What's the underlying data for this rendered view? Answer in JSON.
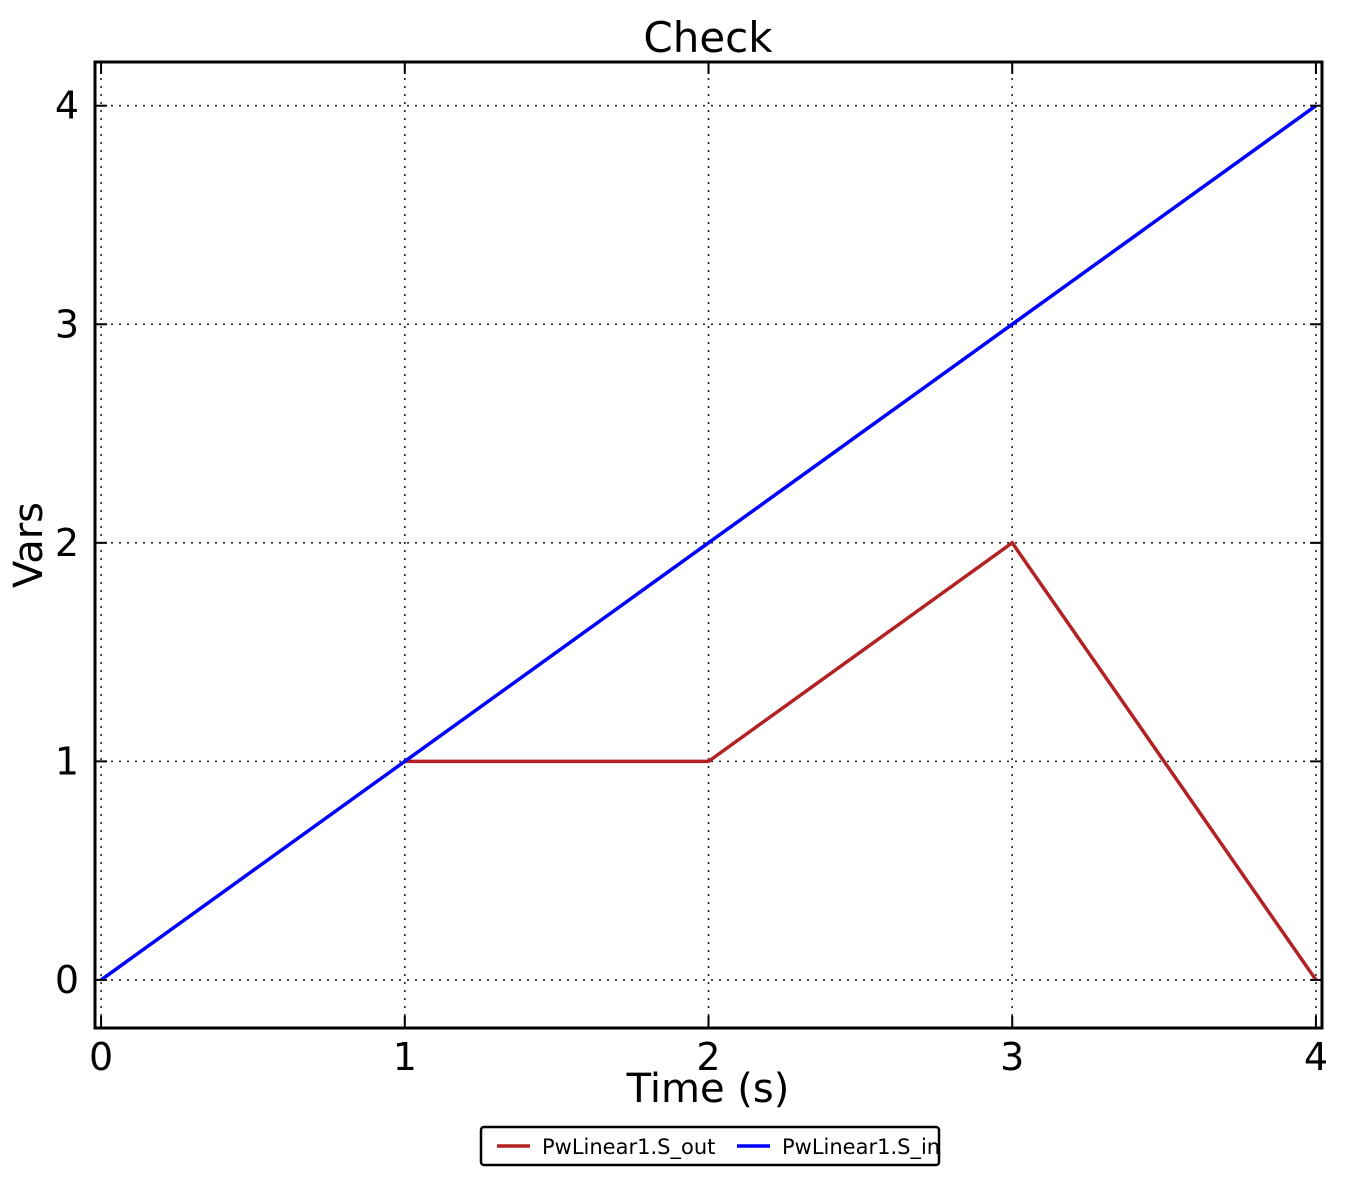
{
  "chart_data": {
    "type": "line",
    "title": "Check",
    "xlabel": "Time (s)",
    "ylabel": "Vars",
    "xlim": [
      -0.02,
      4.02
    ],
    "ylim": [
      -0.22,
      4.2
    ],
    "xticks": [
      0,
      1,
      2,
      3,
      4
    ],
    "yticks": [
      0,
      1,
      2,
      3,
      4
    ],
    "grid": true,
    "grid_style": "dotted",
    "legend_position": "below-center",
    "series": [
      {
        "name": "PwLinear1.S_out",
        "color": "#b22222",
        "x": [
          1,
          2,
          3,
          4
        ],
        "y": [
          1,
          1,
          2,
          0
        ]
      },
      {
        "name": "PwLinear1.S_in",
        "color": "#0000ff",
        "x": [
          0,
          4
        ],
        "y": [
          0,
          4
        ]
      }
    ],
    "colors": {
      "background": "#ffffff",
      "text": "#000000",
      "frame": "#000000",
      "grid": "#222222",
      "legend_border": "#000000",
      "legend_background": "#ffffff"
    }
  }
}
